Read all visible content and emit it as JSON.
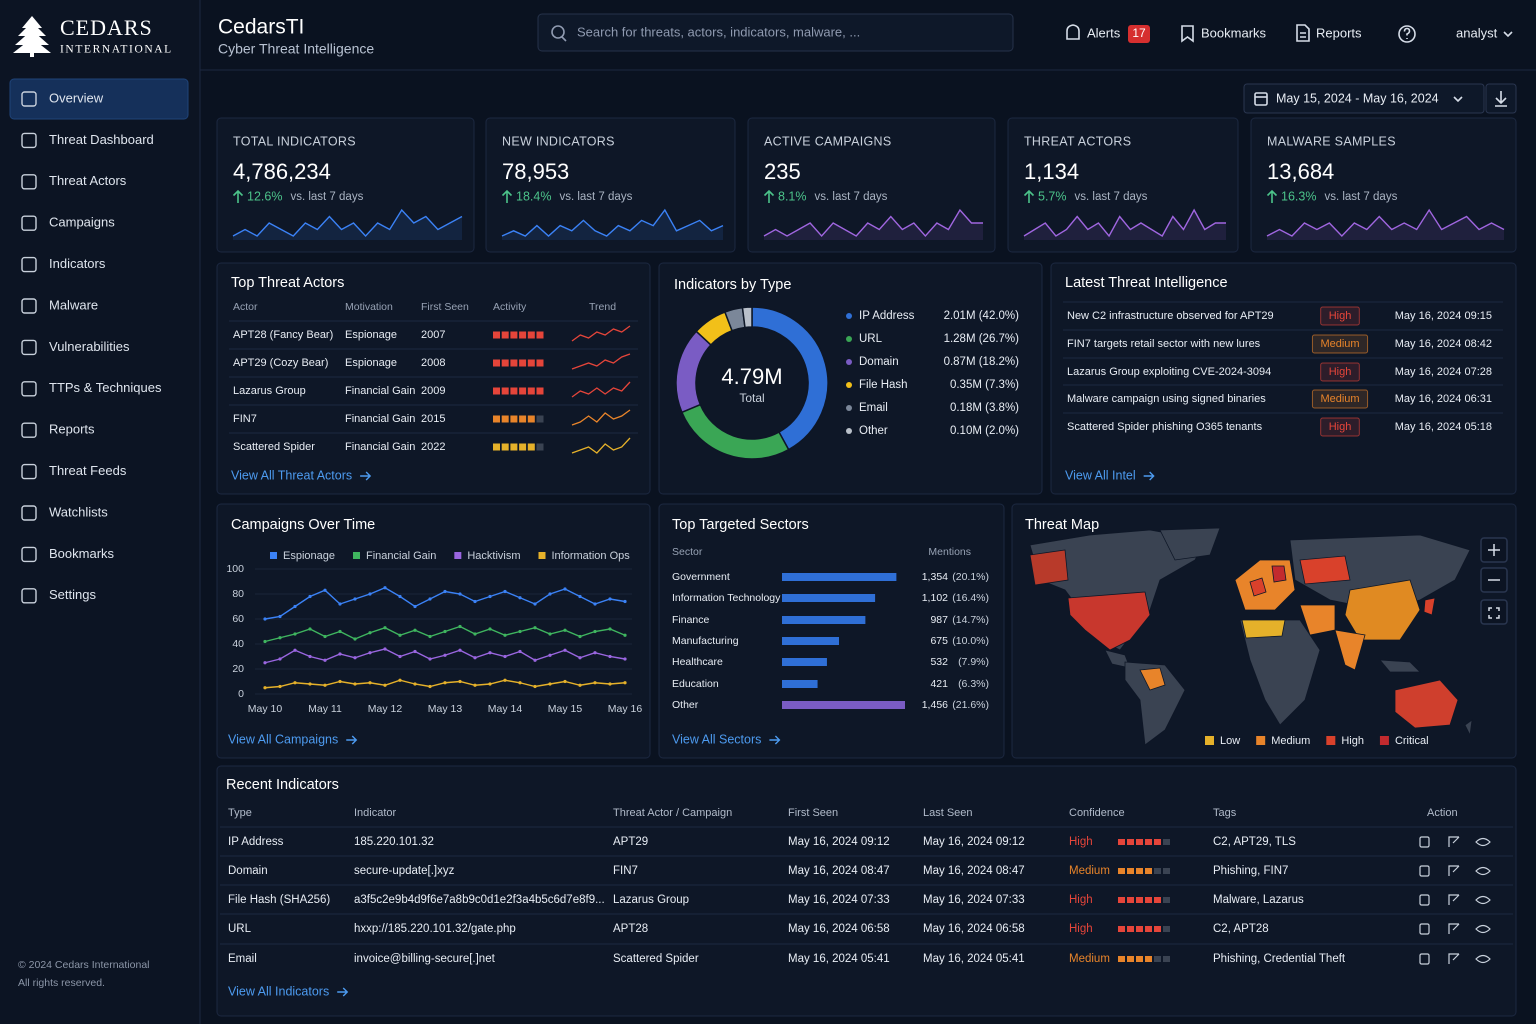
{
  "brand": {
    "name": "CEDARS",
    "sub": "INTERNATIONAL"
  },
  "nav": [
    {
      "label": "Overview",
      "active": true
    },
    {
      "label": "Threat Dashboard"
    },
    {
      "label": "Threat Actors"
    },
    {
      "label": "Campaigns"
    },
    {
      "label": "Indicators"
    },
    {
      "label": "Malware"
    },
    {
      "label": "Vulnerabilities"
    },
    {
      "label": "TTPs & Techniques"
    },
    {
      "label": "Reports"
    },
    {
      "label": "Threat Feeds"
    },
    {
      "label": "Watchlists"
    },
    {
      "label": "Bookmarks"
    },
    {
      "label": "Settings"
    }
  ],
  "footer": [
    "© 2024 Cedars International",
    "All rights reserved."
  ],
  "header": {
    "title": "CedarsTI",
    "subtitle": "Cyber Threat Intelligence",
    "search_placeholder": "Search for threats, actors, indicators, malware, ...",
    "alerts": "Alerts",
    "alert_count": 17,
    "bookmarks": "Bookmarks",
    "reports": "Reports",
    "user": "analyst"
  },
  "date_range": "May 15, 2024 - May 16, 2024",
  "kpis": [
    {
      "label": "TOTAL INDICATORS",
      "value": "4,786,234",
      "change": "12.6%",
      "comparison": "vs. last 7 days",
      "color": "#3b82f6",
      "sparkline": [
        3,
        4,
        3,
        5,
        4,
        3,
        5,
        4,
        6,
        4,
        5,
        3,
        5,
        4,
        7,
        5,
        6,
        4,
        5,
        6
      ]
    },
    {
      "label": "NEW INDICATORS",
      "value": "78,953",
      "change": "18.4%",
      "comparison": "vs. last 7 days",
      "color": "#3b82f6",
      "sparkline": [
        3,
        4,
        3,
        5,
        3,
        5,
        4,
        6,
        4,
        3,
        5,
        4,
        6,
        5,
        8,
        4,
        5,
        6,
        4,
        5
      ]
    },
    {
      "label": "ACTIVE CAMPAIGNS",
      "value": "235",
      "change": "8.1%",
      "comparison": "vs. last 7 days",
      "color": "#a066e0",
      "sparkline": [
        3,
        4,
        3,
        4,
        5,
        3,
        5,
        4,
        3,
        5,
        4,
        6,
        4,
        5,
        3,
        5,
        4,
        7,
        5,
        5
      ]
    },
    {
      "label": "THREAT ACTORS",
      "value": "1,134",
      "change": "5.7%",
      "comparison": "vs. last 7 days",
      "color": "#a066e0",
      "sparkline": [
        3,
        4,
        5,
        3,
        4,
        6,
        4,
        5,
        3,
        6,
        4,
        5,
        4,
        3,
        6,
        4,
        7,
        4,
        5,
        5
      ]
    },
    {
      "label": "MALWARE SAMPLES",
      "value": "13,684",
      "change": "16.3%",
      "comparison": "vs. last 7 days",
      "color": "#a066e0",
      "sparkline": [
        3,
        4,
        3,
        5,
        4,
        5,
        3,
        5,
        4,
        6,
        4,
        5,
        4,
        7,
        4,
        5,
        6,
        4,
        5,
        4
      ]
    }
  ],
  "top_threat_actors": {
    "title": "Top Threat Actors",
    "columns": [
      "Actor",
      "Motivation",
      "First Seen",
      "Activity",
      "Trend"
    ],
    "activity_max": 6,
    "rows": [
      {
        "actor": "APT28 (Fancy Bear)",
        "motivation": "Espionage",
        "first_seen": 2007,
        "activity": 6,
        "color": "#e5453a",
        "trend": [
          3,
          5,
          4,
          6,
          5,
          7,
          6,
          8
        ]
      },
      {
        "actor": "APT29 (Cozy Bear)",
        "motivation": "Espionage",
        "first_seen": 2008,
        "activity": 6,
        "color": "#e5453a",
        "trend": [
          3,
          4,
          5,
          4,
          6,
          5,
          7,
          8
        ]
      },
      {
        "actor": "Lazarus Group",
        "motivation": "Financial Gain",
        "first_seen": 2009,
        "activity": 6,
        "color": "#e5453a",
        "trend": [
          3,
          5,
          4,
          6,
          4,
          6,
          5,
          8
        ]
      },
      {
        "actor": "FIN7",
        "motivation": "Financial Gain",
        "first_seen": 2015,
        "activity": 5,
        "color": "#e8842a",
        "trend": [
          3,
          4,
          6,
          4,
          7,
          5,
          6,
          8
        ]
      },
      {
        "actor": "Scattered Spider",
        "motivation": "Financial Gain",
        "first_seen": 2022,
        "activity": 5,
        "color": "#e5b12a",
        "trend": [
          3,
          4,
          5,
          3,
          6,
          4,
          5,
          8
        ]
      }
    ],
    "link": "View All Threat Actors"
  },
  "indicators_by_type": {
    "title": "Indicators by Type",
    "type": "donut",
    "total": "4.79M",
    "total_caption": "Total",
    "categories": [
      "IP Address",
      "URL",
      "Domain",
      "File Hash",
      "Email",
      "Other"
    ],
    "values": [
      42.0,
      26.7,
      18.2,
      7.3,
      3.8,
      2.0
    ],
    "value_labels": [
      "2.01M (42.0%)",
      "1.28M (26.7%)",
      "0.87M (18.2%)",
      "0.35M (7.3%)",
      "0.18M (3.8%)",
      "0.10M (2.0%)"
    ],
    "colors": [
      "#2f6fd6",
      "#3aa655",
      "#7a5cc4",
      "#f2c019",
      "#7b8799",
      "#b9c0ca"
    ]
  },
  "latest_intel": {
    "title": "Latest Threat Intelligence",
    "rows": [
      {
        "text": "New C2 infrastructure observed for APT29",
        "severity": "High",
        "time": "May 16, 2024 09:15",
        "color": "#e5453a"
      },
      {
        "text": "FIN7 targets retail sector with new lures",
        "severity": "Medium",
        "time": "May 16, 2024 08:42",
        "color": "#e8842a"
      },
      {
        "text": "Lazarus Group exploiting CVE-2024-3094",
        "severity": "High",
        "time": "May 16, 2024 07:28",
        "color": "#e5453a"
      },
      {
        "text": "Malware campaign using signed binaries",
        "severity": "Medium",
        "time": "May 16, 2024 06:31",
        "color": "#e8842a"
      },
      {
        "text": "Scattered Spider phishing O365 tenants",
        "severity": "High",
        "time": "May 16, 2024 05:18",
        "color": "#e5453a"
      }
    ],
    "link": "View All Intel"
  },
  "campaigns_over_time": {
    "title": "Campaigns Over Time",
    "type": "line",
    "categories": [
      "May 10",
      null,
      null,
      null,
      "May 11",
      null,
      null,
      null,
      "May 12",
      null,
      null,
      null,
      "May 13",
      null,
      null,
      null,
      "May 14",
      null,
      null,
      null,
      "May 15",
      null,
      null,
      null,
      "May 16"
    ],
    "series": [
      {
        "name": "Espionage",
        "color": "#3b82f6",
        "values": [
          60,
          62,
          70,
          78,
          83,
          72,
          76,
          80,
          85,
          78,
          70,
          76,
          82,
          80,
          74,
          78,
          82,
          77,
          72,
          80,
          84,
          78,
          72,
          76,
          74
        ]
      },
      {
        "name": "Financial Gain",
        "color": "#3fb55f",
        "values": [
          42,
          45,
          48,
          52,
          46,
          50,
          44,
          49,
          53,
          47,
          51,
          46,
          50,
          54,
          48,
          52,
          47,
          50,
          53,
          48,
          51,
          46,
          50,
          52,
          47
        ]
      },
      {
        "name": "Hacktivism",
        "color": "#9a66e0",
        "values": [
          25,
          28,
          35,
          30,
          27,
          32,
          29,
          33,
          36,
          30,
          34,
          28,
          31,
          35,
          29,
          33,
          30,
          34,
          27,
          31,
          35,
          29,
          33,
          30,
          28
        ]
      },
      {
        "name": "Information Ops",
        "color": "#e5b12a",
        "values": [
          5,
          6,
          9,
          8,
          7,
          10,
          8,
          9,
          7,
          11,
          8,
          6,
          9,
          10,
          7,
          8,
          11,
          9,
          6,
          8,
          10,
          7,
          9,
          8,
          9
        ]
      }
    ],
    "ylim": [
      0,
      100
    ],
    "yticks": [
      0,
      20,
      40,
      60,
      80,
      100
    ],
    "link": "View All Campaigns"
  },
  "top_targeted_sectors": {
    "title": "Top Targeted Sectors",
    "columns": [
      "Sector",
      "Mentions"
    ],
    "categories": [
      "Government",
      "Information Technology",
      "Finance",
      "Manufacturing",
      "Healthcare",
      "Education",
      "Other"
    ],
    "values": [
      1354,
      1102,
      987,
      675,
      532,
      421,
      1456
    ],
    "value_labels": [
      "1,354",
      "1,102",
      "987",
      "675",
      "532",
      "421",
      "1,456"
    ],
    "shares": [
      20.1,
      16.4,
      14.7,
      10.0,
      7.9,
      6.3,
      21.6
    ],
    "share_labels": [
      "(20.1%)",
      "(16.4%)",
      "(14.7%)",
      "(10.0%)",
      "(7.9%)",
      "(6.3%)",
      "(21.6%)"
    ],
    "colors": [
      "#2f6fd6",
      "#2f6fd6",
      "#2f6fd6",
      "#2f6fd6",
      "#2f6fd6",
      "#2f6fd6",
      "#7a5cc4"
    ],
    "xlim": [
      0,
      1456
    ],
    "link": "View All Sectors"
  },
  "threat_map": {
    "title": "Threat Map",
    "legend": [
      "Low",
      "Medium",
      "High",
      "Critical"
    ],
    "legend_colors": [
      "#e5b12a",
      "#e8842a",
      "#d9412b",
      "#c22a2e"
    ]
  },
  "recent_indicators": {
    "title": "Recent Indicators",
    "columns": [
      "Type",
      "Indicator",
      "Threat Actor / Campaign",
      "First Seen",
      "Last Seen",
      "Confidence",
      "Tags",
      "Action"
    ],
    "rows": [
      [
        "IP Address",
        "185.220.101.32",
        "APT29",
        "May 16, 2024 09:12",
        "May 16, 2024 09:12",
        "High",
        "C2, APT29, TLS"
      ],
      [
        "Domain",
        "secure-update[.]xyz",
        "FIN7",
        "May 16, 2024 08:47",
        "May 16, 2024 08:47",
        "Medium",
        "Phishing, FIN7"
      ],
      [
        "File Hash (SHA256)",
        "a3f5c2e9b4d9f6e7a8b9c0d1e2f3a4b5c6d7e8f9...",
        "Lazarus Group",
        "May 16, 2024 07:33",
        "May 16, 2024 07:33",
        "High",
        "Malware, Lazarus"
      ],
      [
        "URL",
        "hxxp://185.220.101.32/gate.php",
        "APT28",
        "May 16, 2024 06:58",
        "May 16, 2024 06:58",
        "High",
        "C2, APT28"
      ],
      [
        "Email",
        "invoice@billing-secure[.]net",
        "Scattered Spider",
        "May 16, 2024 05:41",
        "May 16, 2024 05:41",
        "Medium",
        "Phishing, Credential Theft"
      ]
    ],
    "confidence_levels": [
      5,
      4,
      5,
      5,
      4
    ],
    "confidence_max": 6,
    "confidence_colors": [
      "#e5453a",
      "#e8842a",
      "#e5453a",
      "#e5453a",
      "#e8842a"
    ],
    "link": "View All Indicators"
  }
}
